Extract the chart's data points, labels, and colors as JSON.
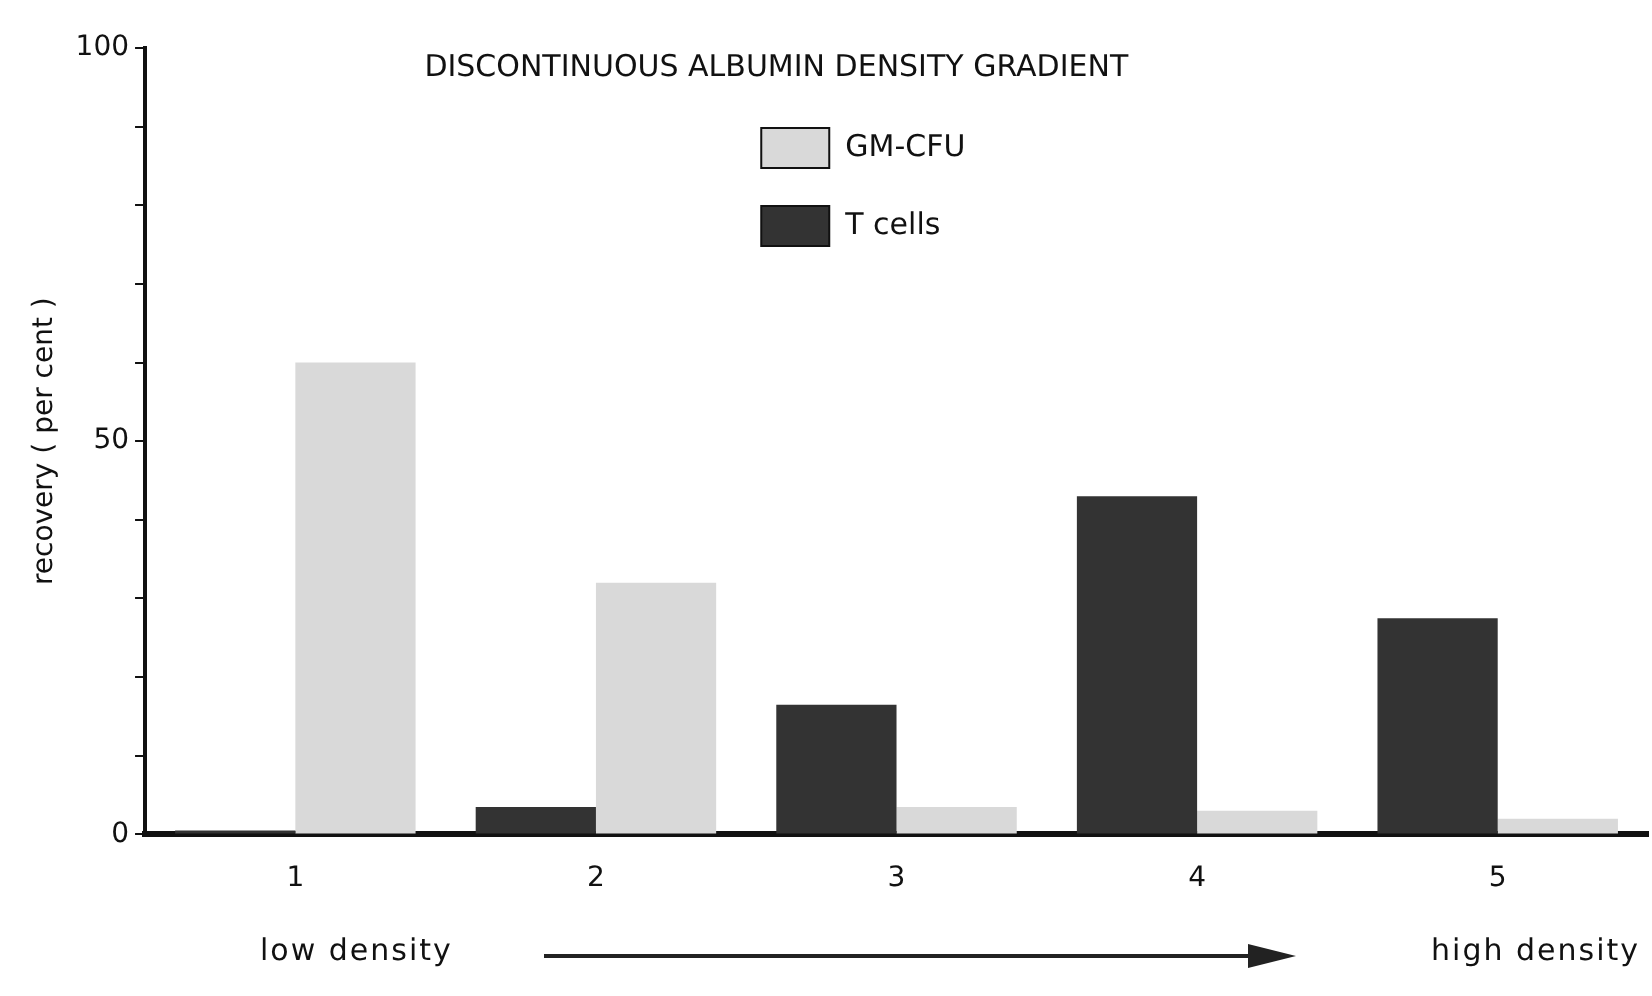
{
  "chart_data": {
    "type": "bar",
    "title": "DISCONTINUOUS ALBUMIN DENSITY GRADIENT",
    "ylabel": "recovery ( per cent )",
    "categories": [
      "1",
      "2",
      "3",
      "4",
      "5"
    ],
    "series": [
      {
        "name": "T cells",
        "color": "#333333",
        "values": [
          0.5,
          3.5,
          16.5,
          43,
          27.5
        ]
      },
      {
        "name": "GM-CFU",
        "color": "#d9d9d9",
        "values": [
          60,
          32,
          3.5,
          3,
          2
        ]
      }
    ],
    "ylim": [
      0,
      100
    ],
    "yticks": [
      0,
      {
        "value": 10,
        "label": null
      },
      {
        "value": 20,
        "label": null
      },
      {
        "value": 30,
        "label": null
      },
      {
        "value": 40,
        "label": null
      },
      50,
      {
        "value": 60,
        "label": null
      },
      {
        "value": 70,
        "label": null
      },
      {
        "value": 80,
        "label": null
      },
      {
        "value": 90,
        "label": null
      },
      100
    ],
    "grid": false,
    "legend": "top",
    "annotations": [
      "low density",
      "high density"
    ]
  }
}
